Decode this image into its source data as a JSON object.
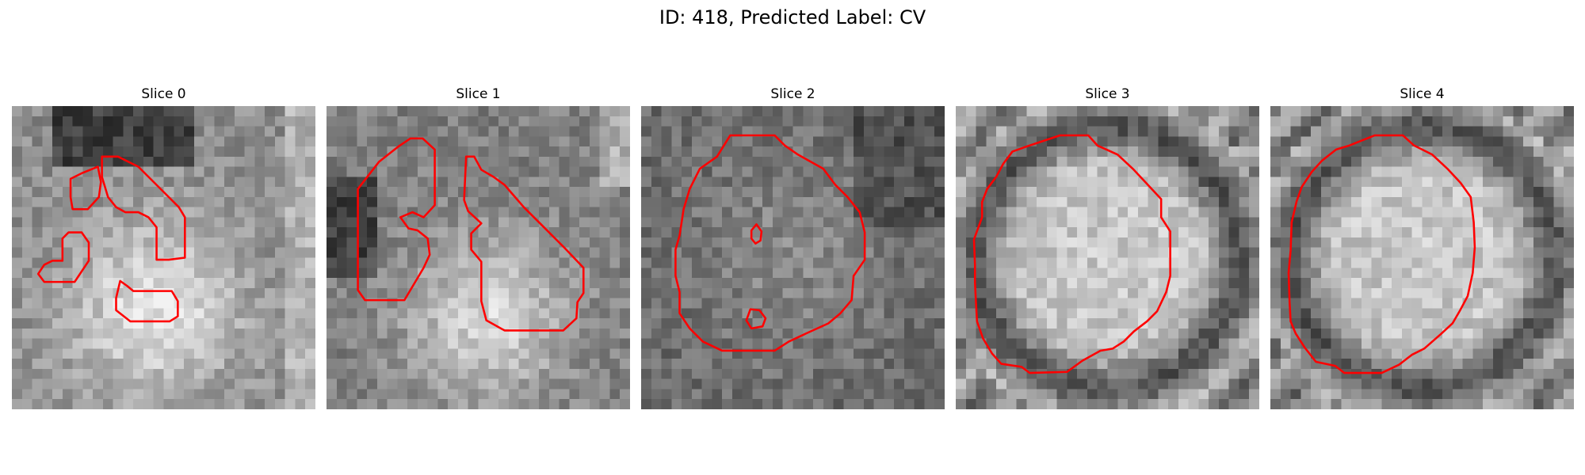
{
  "figure": {
    "title": "ID: 418, Predicted Label: CV"
  },
  "panels": [
    {
      "title": "Slice 0",
      "pattern": "bright-center-dark-top"
    },
    {
      "title": "Slice 1",
      "pattern": "bright-center-dark-left"
    },
    {
      "title": "Slice 2",
      "pattern": "mid-gray-textured"
    },
    {
      "title": "Slice 3",
      "pattern": "bright-disc-dark-ring"
    },
    {
      "title": "Slice 4",
      "pattern": "bright-disc-dark-ring"
    }
  ],
  "colors": {
    "contour": "#ff0000",
    "background": "#ffffff"
  }
}
